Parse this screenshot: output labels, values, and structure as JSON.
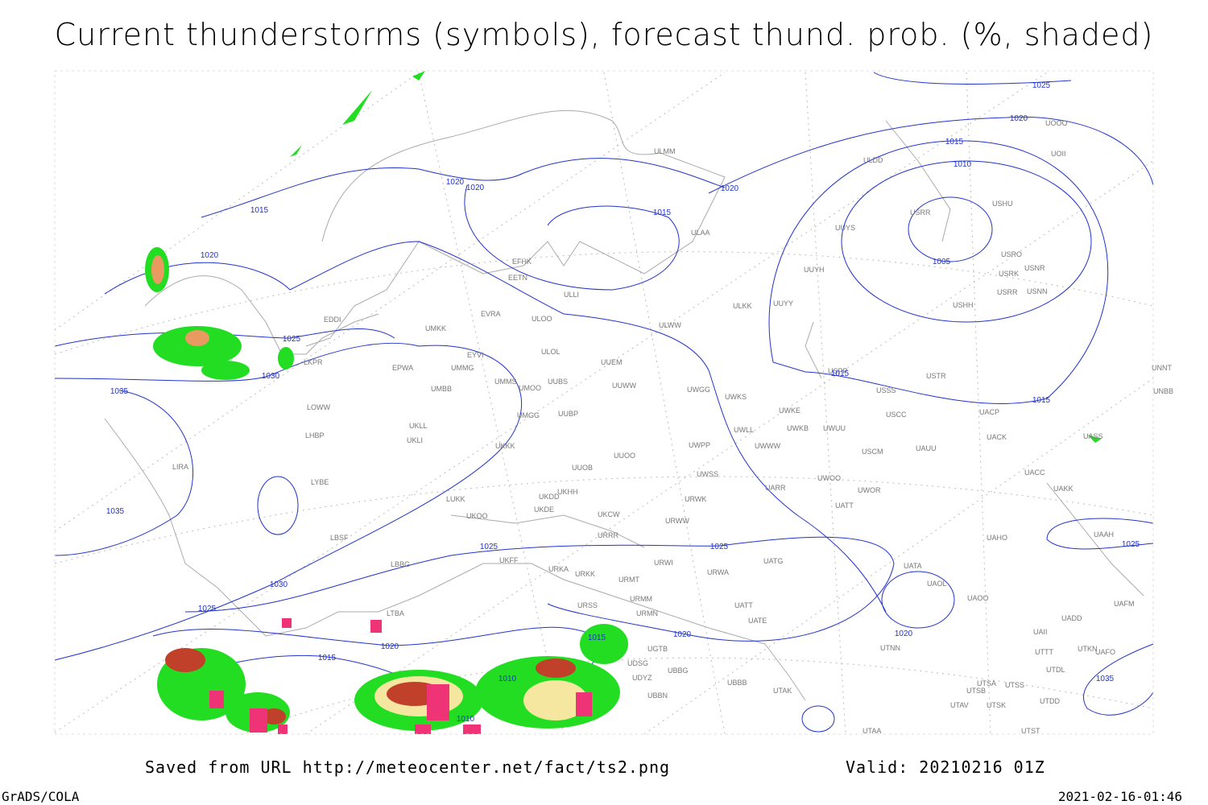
{
  "title": "Current thunderstorms (symbols), forecast thund. prob. (%, shaded)",
  "stations": [
    "ULMM",
    "ULDD",
    "UOOO",
    "UOII",
    "USHU",
    "USRR",
    "UUYS",
    "ULAA",
    "USRO",
    "USNR",
    "USRK",
    "USRR",
    "USNN",
    "UUYH",
    "EFHK",
    "EETN",
    "ULLI",
    "ULKK",
    "UUYY",
    "USHH",
    "EVRA",
    "EDDI",
    "ULOO",
    "ULWW",
    "UMKK",
    "ULOL",
    "EYVI",
    "UUEM",
    "LKPR",
    "EPWA",
    "UMMG",
    "USPP",
    "USTR",
    "UNNT",
    "UMMS",
    "UMOO",
    "UUBS",
    "UUWW",
    "UWGG",
    "UWKS",
    "USSS",
    "UNBB",
    "UMBB",
    "LOWW",
    "UWKE",
    "UACP",
    "UMGG",
    "UUBP",
    "USCC",
    "UKLL",
    "UWKB",
    "UWUU",
    "UWLL",
    "LHBP",
    "UKLI",
    "UACK",
    "UASS",
    "UKKK",
    "UWPP",
    "UWWW",
    "UAUU",
    "USCM",
    "LIRA",
    "UUOO",
    "UACC",
    "UUOB",
    "UWSS",
    "LYBE",
    "UKHH",
    "UARR",
    "UWOO",
    "UAKK",
    "UWOR",
    "UKDD",
    "LUKK",
    "URWK",
    "UATT",
    "UKDE",
    "UKOO",
    "UKCW",
    "URWW",
    "LBSF",
    "URRR",
    "UAHO",
    "UAAH",
    "UKFF",
    "LBBG",
    "URWI",
    "UATG",
    "URKA",
    "URKK",
    "URWA",
    "UATA",
    "URMT",
    "UAOL",
    "UAOO",
    "URMM",
    "URSS",
    "UAFM",
    "UATT",
    "URMN",
    "LTBA",
    "UATE",
    "UADD",
    "UAII",
    "UGTB",
    "UTTT",
    "UTKN",
    "UAFO",
    "UTNN",
    "UDSG",
    "UBBG",
    "UTDL",
    "UDYZ",
    "UBBB",
    "UTAK",
    "UTSA",
    "UTSS",
    "UTSB",
    "UBBN",
    "UTDD",
    "UTAV",
    "UTSK",
    "UTAA",
    "UTST"
  ],
  "isobar_labels": [
    "1025",
    "1020",
    "1015",
    "1010",
    "1005",
    "1020",
    "1020",
    "1020",
    "1015",
    "1015",
    "1020",
    "1025",
    "1030",
    "1035",
    "1015",
    "1015",
    "1035",
    "1025",
    "1025",
    "1025",
    "1030",
    "1025",
    "1020",
    "1020",
    "1020",
    "1015",
    "1015",
    "1010",
    "1010",
    "1035"
  ],
  "footer": {
    "source": "Saved from URL http://meteocenter.net/fact/ts2.png",
    "valid": "Valid: 20210216 01Z",
    "software": "GrADS/COLA",
    "timestamp": "2021-02-16-01:46"
  }
}
